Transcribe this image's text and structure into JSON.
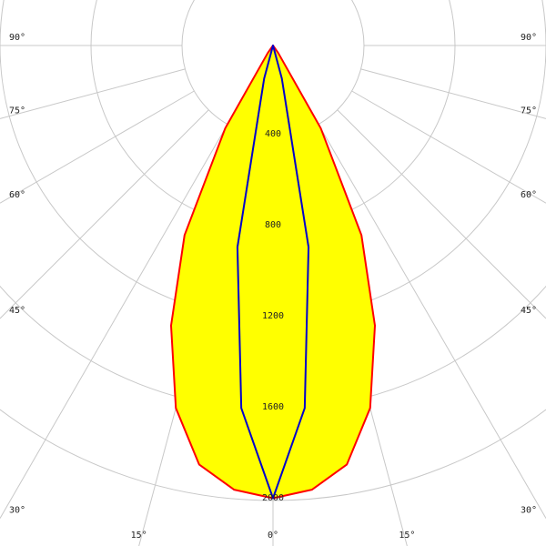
{
  "chart_data": {
    "type": "polar",
    "x": [
      -40,
      -35,
      -30,
      -25,
      -20,
      -15,
      -10,
      -5,
      0,
      5,
      10,
      15,
      20,
      25,
      30,
      35,
      40
    ],
    "series": [
      {
        "color": "#ff0000",
        "fill": "#ffff00",
        "values": [
          0,
          40,
          420,
          920,
          1310,
          1650,
          1870,
          1960,
          1990,
          1960,
          1870,
          1650,
          1310,
          920,
          420,
          40,
          0
        ]
      },
      {
        "color": "#0000cc",
        "values": [
          0,
          0,
          0,
          0,
          0,
          150,
          900,
          1600,
          1990,
          1600,
          900,
          150,
          0,
          0,
          0,
          0,
          0
        ]
      }
    ],
    "ylim": [
      0,
      2000
    ],
    "yticks": [
      400,
      800,
      1200,
      1600,
      2000
    ],
    "xticks": [
      {
        "value": -90,
        "label": "90°"
      },
      {
        "value": -75,
        "label": "75°"
      },
      {
        "value": -60,
        "label": "60°"
      },
      {
        "value": -45,
        "label": "45°"
      },
      {
        "value": -30,
        "label": "30°"
      },
      {
        "value": -15,
        "label": "15°"
      },
      {
        "value": 0,
        "label": "0°"
      },
      {
        "value": 15,
        "label": "15°"
      },
      {
        "value": 30,
        "label": "30°"
      },
      {
        "value": 45,
        "label": "45°"
      },
      {
        "value": 60,
        "label": "60°"
      },
      {
        "value": 75,
        "label": "75°"
      },
      {
        "value": 90,
        "label": "90°"
      }
    ],
    "grid": true
  }
}
